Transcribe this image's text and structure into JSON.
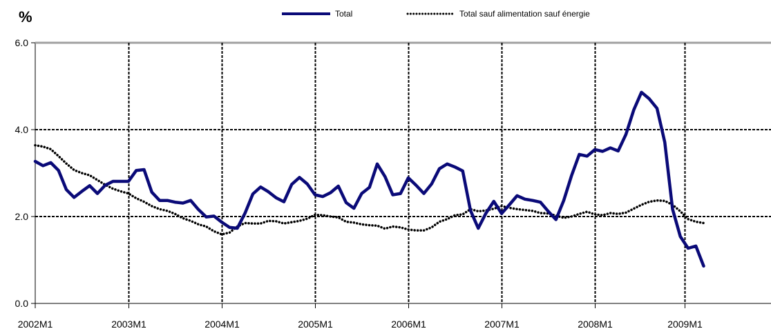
{
  "chart_data": {
    "type": "line",
    "title": "",
    "unit_label": "%",
    "xlabel": "",
    "ylabel": "",
    "x_start": "2002M1",
    "x_tick_labels": [
      "2002M1",
      "2003M1",
      "2004M1",
      "2005M1",
      "2006M1",
      "2007M1",
      "2008M1",
      "2009M1"
    ],
    "y_tick_labels": [
      "0.0",
      "2.0",
      "4.0",
      "6.0"
    ],
    "ylim": [
      0,
      6
    ],
    "x_months_range": [
      0,
      95
    ],
    "grid": "on",
    "legend": {
      "placement": "top"
    },
    "series": [
      {
        "name": "Total",
        "color": "#0a0a78",
        "style": "solid",
        "values": [
          3.27,
          3.17,
          3.24,
          3.06,
          2.62,
          2.44,
          2.58,
          2.71,
          2.53,
          2.72,
          2.81,
          2.81,
          2.81,
          3.06,
          3.08,
          2.56,
          2.37,
          2.37,
          2.33,
          2.31,
          2.37,
          2.16,
          1.99,
          2.01,
          1.87,
          1.75,
          1.73,
          2.08,
          2.52,
          2.68,
          2.57,
          2.43,
          2.34,
          2.74,
          2.9,
          2.75,
          2.5,
          2.46,
          2.55,
          2.7,
          2.32,
          2.19,
          2.53,
          2.67,
          3.21,
          2.92,
          2.5,
          2.53,
          2.89,
          2.72,
          2.53,
          2.75,
          3.1,
          3.21,
          3.14,
          3.05,
          2.14,
          1.73,
          2.08,
          2.35,
          2.07,
          2.27,
          2.48,
          2.4,
          2.37,
          2.33,
          2.12,
          1.93,
          2.37,
          2.94,
          3.43,
          3.39,
          3.54,
          3.5,
          3.58,
          3.51,
          3.89,
          4.45,
          4.86,
          4.71,
          4.49,
          3.71,
          2.17,
          1.54,
          1.27,
          1.32,
          0.86
        ]
      },
      {
        "name": "Total sauf alimentation sauf énergie",
        "color": "#000000",
        "style": "dotted",
        "values": [
          3.64,
          3.61,
          3.55,
          3.39,
          3.22,
          3.07,
          3.0,
          2.95,
          2.84,
          2.73,
          2.64,
          2.58,
          2.53,
          2.42,
          2.34,
          2.24,
          2.17,
          2.13,
          2.06,
          1.96,
          1.9,
          1.82,
          1.77,
          1.66,
          1.59,
          1.63,
          1.77,
          1.85,
          1.84,
          1.84,
          1.9,
          1.89,
          1.84,
          1.87,
          1.9,
          1.95,
          2.04,
          2.03,
          2.0,
          1.98,
          1.88,
          1.86,
          1.82,
          1.8,
          1.79,
          1.72,
          1.77,
          1.75,
          1.7,
          1.68,
          1.68,
          1.75,
          1.88,
          1.94,
          2.03,
          2.05,
          2.17,
          2.12,
          2.14,
          2.18,
          2.24,
          2.2,
          2.17,
          2.15,
          2.13,
          2.08,
          2.07,
          2.02,
          1.97,
          2.0,
          2.06,
          2.11,
          2.05,
          2.03,
          2.08,
          2.06,
          2.09,
          2.18,
          2.27,
          2.34,
          2.37,
          2.36,
          2.27,
          2.12,
          1.94,
          1.88,
          1.85
        ]
      }
    ]
  }
}
